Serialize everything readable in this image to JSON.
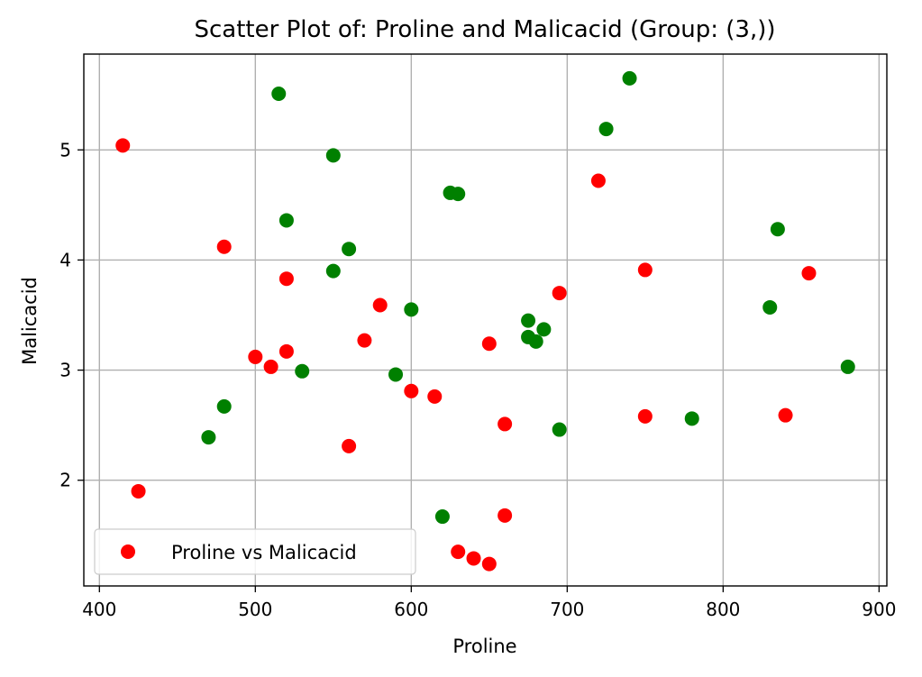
{
  "chart_data": {
    "type": "scatter",
    "title": "Scatter Plot of: Proline and Malicacid (Group: (3,))",
    "xlabel": "Proline",
    "ylabel": "Malicacid",
    "xlim": [
      390,
      905
    ],
    "ylim": [
      1.04,
      5.87
    ],
    "xticks": [
      400,
      500,
      600,
      700,
      800,
      900
    ],
    "yticks": [
      2,
      3,
      4,
      5
    ],
    "grid": true,
    "legend": {
      "placement": "lower-left",
      "label": "Proline vs Malicacid",
      "color": "#ff0000"
    },
    "colors": {
      "red": "#ff0000",
      "green": "#008000"
    },
    "points": [
      {
        "x": 415,
        "y": 5.04,
        "color": "red"
      },
      {
        "x": 425,
        "y": 1.9,
        "color": "red"
      },
      {
        "x": 480,
        "y": 4.12,
        "color": "red"
      },
      {
        "x": 500,
        "y": 3.12,
        "color": "red"
      },
      {
        "x": 510,
        "y": 3.03,
        "color": "red"
      },
      {
        "x": 520,
        "y": 3.83,
        "color": "red"
      },
      {
        "x": 520,
        "y": 3.17,
        "color": "red"
      },
      {
        "x": 560,
        "y": 2.31,
        "color": "red"
      },
      {
        "x": 570,
        "y": 3.27,
        "color": "red"
      },
      {
        "x": 580,
        "y": 3.59,
        "color": "red"
      },
      {
        "x": 600,
        "y": 2.81,
        "color": "red"
      },
      {
        "x": 615,
        "y": 2.76,
        "color": "red"
      },
      {
        "x": 630,
        "y": 1.35,
        "color": "red"
      },
      {
        "x": 640,
        "y": 1.29,
        "color": "red"
      },
      {
        "x": 650,
        "y": 1.24,
        "color": "red"
      },
      {
        "x": 650,
        "y": 3.24,
        "color": "red"
      },
      {
        "x": 660,
        "y": 2.51,
        "color": "red"
      },
      {
        "x": 660,
        "y": 1.68,
        "color": "red"
      },
      {
        "x": 695,
        "y": 3.7,
        "color": "red"
      },
      {
        "x": 720,
        "y": 4.72,
        "color": "red"
      },
      {
        "x": 750,
        "y": 3.91,
        "color": "red"
      },
      {
        "x": 750,
        "y": 2.58,
        "color": "red"
      },
      {
        "x": 840,
        "y": 2.59,
        "color": "red"
      },
      {
        "x": 855,
        "y": 3.88,
        "color": "red"
      },
      {
        "x": 470,
        "y": 2.39,
        "color": "green"
      },
      {
        "x": 480,
        "y": 2.67,
        "color": "green"
      },
      {
        "x": 515,
        "y": 5.51,
        "color": "green"
      },
      {
        "x": 520,
        "y": 4.36,
        "color": "green"
      },
      {
        "x": 530,
        "y": 2.99,
        "color": "green"
      },
      {
        "x": 550,
        "y": 4.95,
        "color": "green"
      },
      {
        "x": 550,
        "y": 3.9,
        "color": "green"
      },
      {
        "x": 560,
        "y": 4.1,
        "color": "green"
      },
      {
        "x": 590,
        "y": 2.96,
        "color": "green"
      },
      {
        "x": 600,
        "y": 3.55,
        "color": "green"
      },
      {
        "x": 620,
        "y": 1.67,
        "color": "green"
      },
      {
        "x": 625,
        "y": 4.61,
        "color": "green"
      },
      {
        "x": 630,
        "y": 4.6,
        "color": "green"
      },
      {
        "x": 675,
        "y": 3.45,
        "color": "green"
      },
      {
        "x": 675,
        "y": 3.3,
        "color": "green"
      },
      {
        "x": 680,
        "y": 3.26,
        "color": "green"
      },
      {
        "x": 685,
        "y": 3.37,
        "color": "green"
      },
      {
        "x": 695,
        "y": 2.46,
        "color": "green"
      },
      {
        "x": 725,
        "y": 5.19,
        "color": "green"
      },
      {
        "x": 740,
        "y": 5.65,
        "color": "green"
      },
      {
        "x": 780,
        "y": 2.56,
        "color": "green"
      },
      {
        "x": 830,
        "y": 3.57,
        "color": "green"
      },
      {
        "x": 835,
        "y": 4.28,
        "color": "green"
      },
      {
        "x": 880,
        "y": 3.03,
        "color": "green"
      }
    ]
  }
}
